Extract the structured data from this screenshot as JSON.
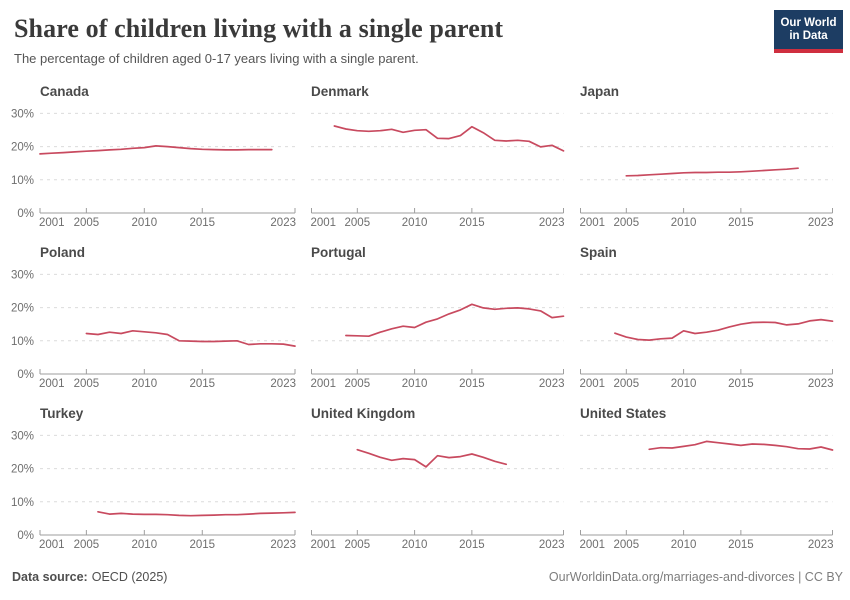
{
  "header": {
    "title": "Share of children living with a single parent",
    "subtitle": "The percentage of children aged 0-17 years living with a single parent.",
    "logo_line1": "Our World",
    "logo_line2": "in Data"
  },
  "footer": {
    "datasource_label": "Data source:",
    "datasource_value": "OECD (2025)",
    "right_text": "OurWorldinData.org/marriages-and-divorces | CC BY"
  },
  "colors": {
    "line": "#c84a5f",
    "grid": "#dcdcdc",
    "axis": "#9e9e9e",
    "tick_text": "#6e6e6e",
    "chart_title": "#4a4a4a",
    "logo_bg": "#1d3d63",
    "logo_stripe": "#cf2f3f"
  },
  "axis": {
    "x_domain": [
      2001,
      2023
    ],
    "x_ticks": [
      2001,
      2005,
      2010,
      2015,
      2023
    ],
    "mid_ticks": [
      2005,
      2010,
      2015
    ],
    "y_ticks": [
      0,
      10,
      20,
      30
    ],
    "y_tick_labels": [
      "0%",
      "10%",
      "20%",
      "30%"
    ],
    "ylim": [
      0,
      33
    ],
    "grid": "dashed-horizontal",
    "y_labels_on_first_column_only": true
  },
  "chart_data": [
    {
      "type": "line",
      "title": "Canada",
      "x": [
        2001,
        2002,
        2003,
        2004,
        2005,
        2006,
        2007,
        2008,
        2009,
        2010,
        2011,
        2012,
        2013,
        2014,
        2015,
        2016,
        2017,
        2018,
        2019,
        2020,
        2021
      ],
      "y": [
        17.8,
        18.0,
        18.2,
        18.4,
        18.6,
        18.8,
        19.0,
        19.2,
        19.5,
        19.7,
        20.2,
        20.0,
        19.7,
        19.4,
        19.2,
        19.1,
        19.0,
        19.0,
        19.1,
        19.1,
        19.1
      ]
    },
    {
      "type": "line",
      "title": "Denmark",
      "x": [
        2003,
        2004,
        2005,
        2006,
        2007,
        2008,
        2009,
        2010,
        2011,
        2012,
        2013,
        2014,
        2015,
        2016,
        2017,
        2018,
        2019,
        2020,
        2021,
        2022,
        2023
      ],
      "y": [
        26.2,
        25.3,
        24.8,
        24.6,
        24.8,
        25.2,
        24.3,
        24.9,
        25.1,
        22.5,
        22.4,
        23.3,
        26.0,
        24.2,
        21.9,
        21.7,
        21.9,
        21.6,
        19.9,
        20.4,
        18.7
      ]
    },
    {
      "type": "line",
      "title": "Japan",
      "x": [
        2005,
        2006,
        2007,
        2008,
        2009,
        2010,
        2011,
        2012,
        2013,
        2014,
        2015,
        2016,
        2017,
        2018,
        2019,
        2020
      ],
      "y": [
        11.2,
        11.3,
        11.5,
        11.7,
        11.9,
        12.1,
        12.2,
        12.2,
        12.3,
        12.3,
        12.4,
        12.6,
        12.8,
        13.0,
        13.2,
        13.5
      ]
    },
    {
      "type": "line",
      "title": "Poland",
      "x": [
        2005,
        2006,
        2007,
        2008,
        2009,
        2010,
        2011,
        2012,
        2013,
        2014,
        2015,
        2016,
        2017,
        2018,
        2019,
        2020,
        2021,
        2022,
        2023
      ],
      "y": [
        12.2,
        11.9,
        12.6,
        12.2,
        13.0,
        12.7,
        12.4,
        11.9,
        10.0,
        9.9,
        9.8,
        9.8,
        9.9,
        10.0,
        8.9,
        9.1,
        9.1,
        9.0,
        8.4
      ]
    },
    {
      "type": "line",
      "title": "Portugal",
      "x": [
        2004,
        2005,
        2006,
        2007,
        2008,
        2009,
        2010,
        2011,
        2012,
        2013,
        2014,
        2015,
        2016,
        2017,
        2018,
        2019,
        2020,
        2021,
        2022,
        2023
      ],
      "y": [
        11.6,
        11.5,
        11.4,
        12.6,
        13.6,
        14.4,
        14.0,
        15.6,
        16.6,
        18.1,
        19.3,
        21.0,
        19.9,
        19.5,
        19.8,
        19.9,
        19.6,
        19.0,
        17.0,
        17.4
      ]
    },
    {
      "type": "line",
      "title": "Spain",
      "x": [
        2004,
        2005,
        2006,
        2007,
        2008,
        2009,
        2010,
        2011,
        2012,
        2013,
        2014,
        2015,
        2016,
        2017,
        2018,
        2019,
        2020,
        2021,
        2022,
        2023
      ],
      "y": [
        12.3,
        11.1,
        10.4,
        10.2,
        10.6,
        10.8,
        13.0,
        12.2,
        12.6,
        13.2,
        14.2,
        15.0,
        15.5,
        15.6,
        15.5,
        14.8,
        15.1,
        16.0,
        16.4,
        15.9
      ]
    },
    {
      "type": "line",
      "title": "Turkey",
      "x": [
        2006,
        2007,
        2008,
        2009,
        2010,
        2011,
        2012,
        2013,
        2014,
        2015,
        2016,
        2017,
        2018,
        2019,
        2020,
        2021,
        2022,
        2023
      ],
      "y": [
        7.0,
        6.3,
        6.5,
        6.3,
        6.2,
        6.2,
        6.1,
        5.9,
        5.8,
        5.9,
        6.0,
        6.1,
        6.1,
        6.3,
        6.5,
        6.6,
        6.7,
        6.8
      ]
    },
    {
      "type": "line",
      "title": "United Kingdom",
      "x": [
        2005,
        2006,
        2007,
        2008,
        2009,
        2010,
        2011,
        2012,
        2013,
        2014,
        2015,
        2016,
        2017,
        2018
      ],
      "y": [
        25.7,
        24.6,
        23.4,
        22.5,
        23.0,
        22.7,
        20.5,
        23.9,
        23.3,
        23.6,
        24.4,
        23.4,
        22.2,
        21.3
      ]
    },
    {
      "type": "line",
      "title": "United States",
      "x": [
        2007,
        2008,
        2009,
        2010,
        2011,
        2012,
        2013,
        2014,
        2015,
        2016,
        2017,
        2018,
        2019,
        2020,
        2021,
        2022,
        2023
      ],
      "y": [
        25.8,
        26.3,
        26.2,
        26.7,
        27.2,
        28.2,
        27.8,
        27.4,
        27.0,
        27.4,
        27.3,
        27.0,
        26.6,
        26.0,
        25.9,
        26.5,
        25.6
      ]
    }
  ]
}
